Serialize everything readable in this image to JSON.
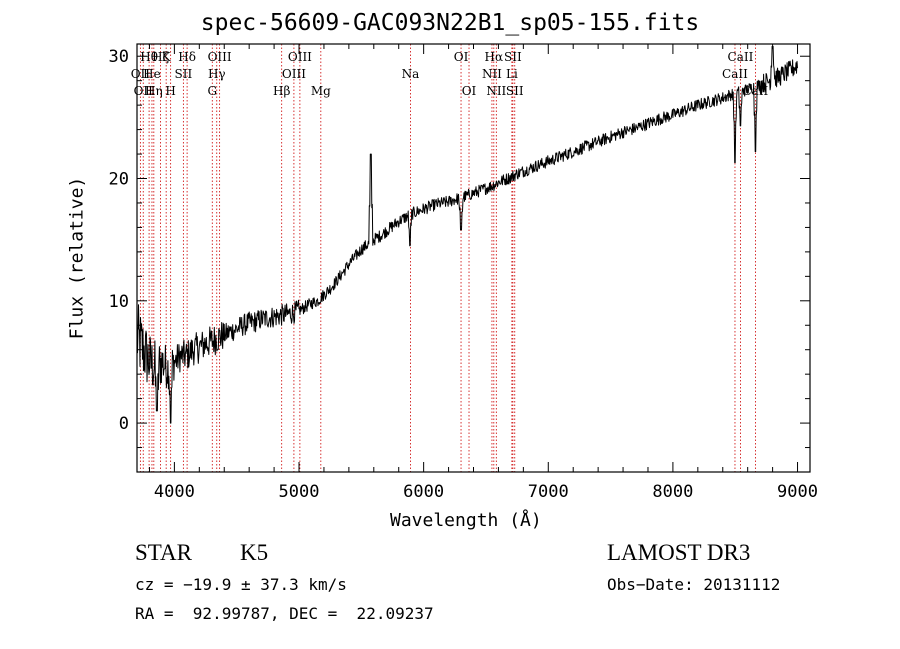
{
  "chart_data": {
    "type": "line",
    "title": "spec-56609-GAC093N22B1_sp05-155.fits",
    "xlabel": "Wavelength (Å)",
    "ylabel": "Flux (relative)",
    "xlim": [
      3700,
      9100
    ],
    "ylim": [
      -4,
      31
    ],
    "x_ticks": [
      4000,
      5000,
      6000,
      7000,
      8000,
      9000
    ],
    "x_tick_labels": [
      "4000",
      "5000",
      "6000",
      "7000",
      "8000",
      "9000"
    ],
    "y_ticks": [
      0,
      10,
      20,
      30
    ],
    "y_tick_labels": [
      "0",
      "10",
      "20",
      "30"
    ],
    "series": [
      {
        "name": "flux",
        "x": [
          3700,
          3750,
          3800,
          3850,
          3900,
          3950,
          4000,
          4050,
          4100,
          4150,
          4200,
          4250,
          4300,
          4350,
          4400,
          4450,
          4500,
          4550,
          4600,
          4650,
          4700,
          4750,
          4800,
          4850,
          4900,
          4950,
          5000,
          5050,
          5100,
          5150,
          5200,
          5250,
          5300,
          5350,
          5400,
          5450,
          5500,
          5550,
          5600,
          5650,
          5700,
          5750,
          5800,
          5850,
          5900,
          5950,
          6000,
          6050,
          6100,
          6150,
          6200,
          6250,
          6300,
          6350,
          6400,
          6450,
          6500,
          6550,
          6600,
          6650,
          6700,
          6750,
          6800,
          6850,
          6900,
          6950,
          7000,
          7100,
          7200,
          7300,
          7400,
          7500,
          7600,
          7700,
          7800,
          7900,
          8000,
          8100,
          8200,
          8300,
          8400,
          8450,
          8500,
          8550,
          8600,
          8650,
          8700,
          8750,
          8800,
          8850,
          8900,
          8950,
          9000
        ],
        "y": [
          7,
          6,
          5,
          4.5,
          5,
          4.5,
          5,
          5.5,
          5.5,
          6,
          6.2,
          6.5,
          6.7,
          7,
          7.2,
          7.5,
          7.7,
          8,
          8.2,
          8.3,
          8.5,
          8.6,
          8.7,
          8.8,
          8.9,
          9,
          9.2,
          9.5,
          9.8,
          10,
          10.5,
          11,
          11.6,
          12.3,
          13,
          13.6,
          14.2,
          14.6,
          15,
          15.3,
          15.7,
          16.1,
          16.5,
          16.8,
          17.1,
          17.3,
          17.5,
          17.7,
          17.9,
          18,
          18.1,
          18.3,
          18.4,
          18.6,
          18.8,
          19,
          19.2,
          19.4,
          19.7,
          19.9,
          20.1,
          20.4,
          20.6,
          20.8,
          21,
          21.2,
          21.4,
          21.8,
          22.2,
          22.6,
          23,
          23.4,
          23.8,
          24.1,
          24.5,
          24.9,
          25.2,
          25.6,
          26,
          26.3,
          26.6,
          26.8,
          27,
          27.1,
          27.3,
          27.5,
          27.7,
          27.9,
          28.1,
          28.3,
          28.6,
          28.9,
          29.3
        ],
        "features": [
          {
            "x": 3860,
            "y": 1,
            "note": "absorption"
          },
          {
            "x": 3970,
            "y": 0,
            "note": "absorption"
          },
          {
            "x": 5577,
            "y": 22,
            "note": "sky emission"
          },
          {
            "x": 5890,
            "y": 14.5,
            "note": "Na absorption"
          },
          {
            "x": 6300,
            "y": 15.8,
            "note": "absorption"
          },
          {
            "x": 8498,
            "y": 21.3,
            "note": "CaII"
          },
          {
            "x": 8542,
            "y": 24.3,
            "note": "CaII"
          },
          {
            "x": 8662,
            "y": 22.2,
            "note": "CaII"
          },
          {
            "x": 8800,
            "y": 31,
            "note": "noise spike"
          }
        ]
      }
    ],
    "line_markers": [
      {
        "wavelength": 3727,
        "label": "OII",
        "row": 2
      },
      {
        "wavelength": 3750,
        "label": "OII",
        "row": 3
      },
      {
        "wavelength": 3797,
        "label": "Hθ",
        "row": 1
      },
      {
        "wavelength": 3820,
        "label": "He",
        "row": 2
      },
      {
        "wavelength": 3835,
        "label": "Hη",
        "row": 3
      },
      {
        "wavelength": 3889,
        "label": "Hζ",
        "row": 1
      },
      {
        "wavelength": 3934,
        "label": "K",
        "row": 1
      },
      {
        "wavelength": 3970,
        "label": "H",
        "row": 3
      },
      {
        "wavelength": 4072,
        "label": "SII",
        "row": 2
      },
      {
        "wavelength": 4102,
        "label": "Hδ",
        "row": 1
      },
      {
        "wavelength": 4304,
        "label": "G",
        "row": 3
      },
      {
        "wavelength": 4340,
        "label": "Hγ",
        "row": 2
      },
      {
        "wavelength": 4363,
        "label": "OIII",
        "row": 1
      },
      {
        "wavelength": 4861,
        "label": "Hβ",
        "row": 3
      },
      {
        "wavelength": 4959,
        "label": "OIII",
        "row": 2
      },
      {
        "wavelength": 5007,
        "label": "OIII",
        "row": 1
      },
      {
        "wavelength": 5175,
        "label": "Mg",
        "row": 3
      },
      {
        "wavelength": 5894,
        "label": "Na",
        "row": 2
      },
      {
        "wavelength": 6300,
        "label": "OI",
        "row": 1
      },
      {
        "wavelength": 6364,
        "label": "OI",
        "row": 3
      },
      {
        "wavelength": 6548,
        "label": "NII",
        "row": 2
      },
      {
        "wavelength": 6563,
        "label": "Hα",
        "row": 1
      },
      {
        "wavelength": 6583,
        "label": "NII",
        "row": 3
      },
      {
        "wavelength": 6708,
        "label": "Li",
        "row": 2
      },
      {
        "wavelength": 6716,
        "label": "SII",
        "row": 1
      },
      {
        "wavelength": 6731,
        "label": "SII",
        "row": 3
      },
      {
        "wavelength": 8498,
        "label": "CaII",
        "row": 2
      },
      {
        "wavelength": 8542,
        "label": "CaII",
        "row": 1
      },
      {
        "wavelength": 8662,
        "label": "CaII",
        "row": 3
      }
    ],
    "colors": {
      "spectrum": "#000000",
      "markers": "#cc0000",
      "axes": "#000000"
    }
  },
  "info": {
    "class_label": "STAR",
    "subclass": "K5",
    "survey": "LAMOST DR3",
    "cz": "cz = −19.9 ± 37.3 km/s",
    "obs_date": "Obs−Date: 20131112",
    "coords": "RA =  92.99787, DEC =  22.09237"
  }
}
